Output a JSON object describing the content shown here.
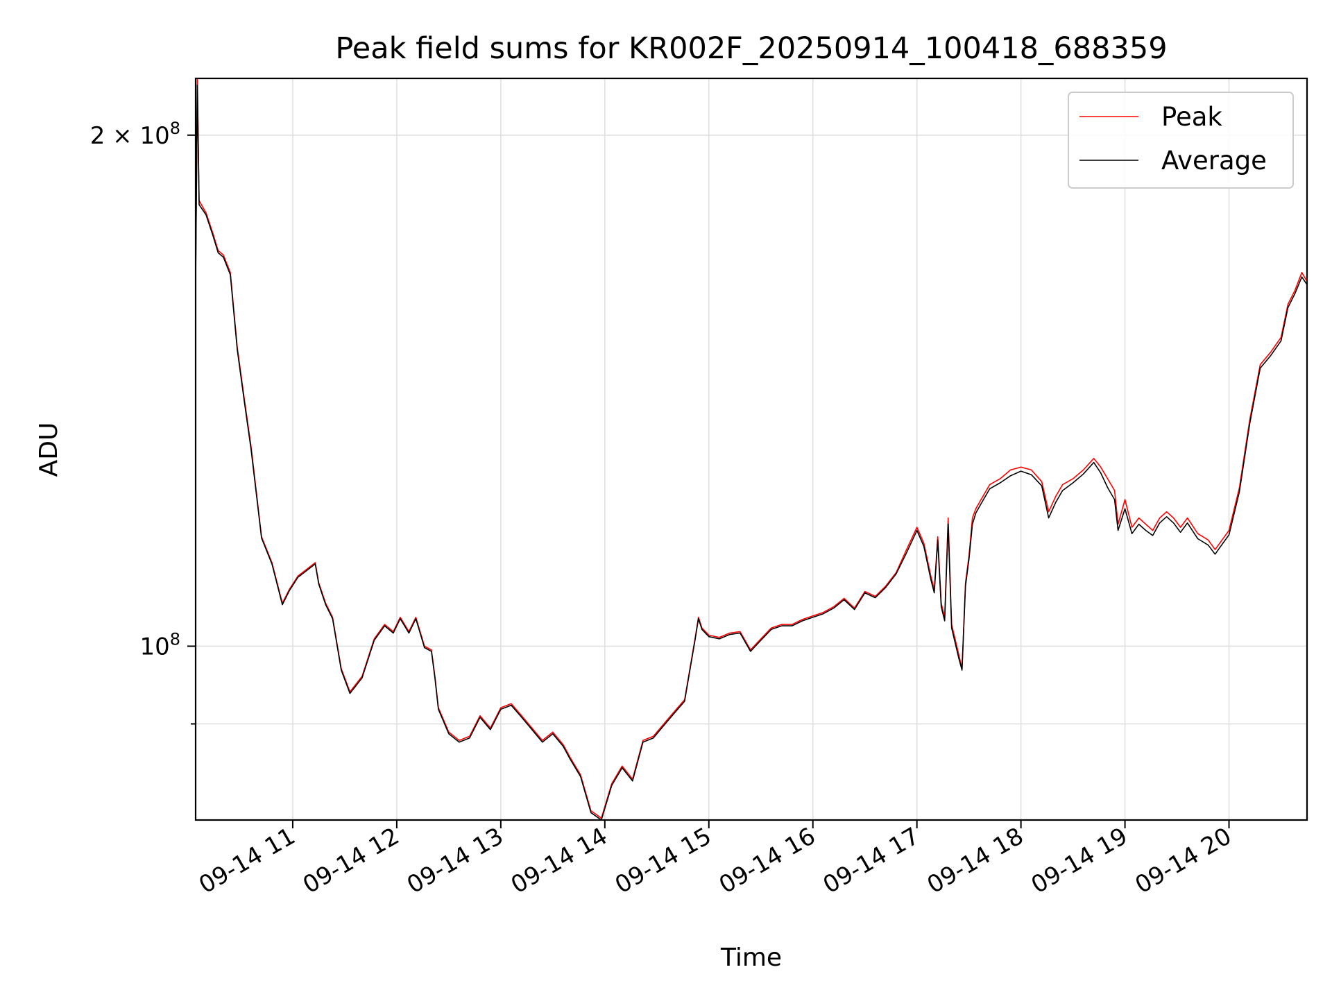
{
  "chart_data": {
    "type": "line",
    "title": "Peak field sums for KR002F_20250914_100418_688359",
    "xlabel": "Time",
    "ylabel": "ADU",
    "yscale": "log",
    "ylim": [
      79000000,
      216000000
    ],
    "xlim": [
      "2025-09-14 10:04",
      "2025-09-14 20:45"
    ],
    "grid": true,
    "legend_position": "top-right",
    "x_ticks": [
      {
        "value": "2025-09-14 11:00",
        "label": "09-14 11"
      },
      {
        "value": "2025-09-14 12:00",
        "label": "09-14 12"
      },
      {
        "value": "2025-09-14 13:00",
        "label": "09-14 13"
      },
      {
        "value": "2025-09-14 14:00",
        "label": "09-14 14"
      },
      {
        "value": "2025-09-14 15:00",
        "label": "09-14 15"
      },
      {
        "value": "2025-09-14 16:00",
        "label": "09-14 16"
      },
      {
        "value": "2025-09-14 17:00",
        "label": "09-14 17"
      },
      {
        "value": "2025-09-14 18:00",
        "label": "09-14 18"
      },
      {
        "value": "2025-09-14 19:00",
        "label": "09-14 19"
      },
      {
        "value": "2025-09-14 20:00",
        "label": "09-14 20"
      }
    ],
    "y_major_ticks": [
      {
        "value": 100000000,
        "label": "10",
        "exp": "8",
        "prefix": ""
      },
      {
        "value": 200000000,
        "label": "10",
        "exp": "8",
        "prefix": "2 × "
      }
    ],
    "y_minor_ticks": [
      90000000
    ],
    "series": [
      {
        "name": "Peak",
        "color": "#ff0000",
        "x": [
          "2025-09-14 10:04",
          "2025-09-14 10:05",
          "2025-09-14 10:06",
          "2025-09-14 10:10",
          "2025-09-14 10:14",
          "2025-09-14 10:17",
          "2025-09-14 10:20",
          "2025-09-14 10:24",
          "2025-09-14 10:28",
          "2025-09-14 10:32",
          "2025-09-14 10:36",
          "2025-09-14 10:42",
          "2025-09-14 10:48",
          "2025-09-14 10:54",
          "2025-09-14 10:58",
          "2025-09-14 11:03",
          "2025-09-14 11:08",
          "2025-09-14 11:13",
          "2025-09-14 11:15",
          "2025-09-14 11:19",
          "2025-09-14 11:23",
          "2025-09-14 11:28",
          "2025-09-14 11:33",
          "2025-09-14 11:40",
          "2025-09-14 11:47",
          "2025-09-14 11:53",
          "2025-09-14 11:58",
          "2025-09-14 12:02",
          "2025-09-14 12:07",
          "2025-09-14 12:11",
          "2025-09-14 12:16",
          "2025-09-14 12:20",
          "2025-09-14 12:22",
          "2025-09-14 12:24",
          "2025-09-14 12:30",
          "2025-09-14 12:36",
          "2025-09-14 12:42",
          "2025-09-14 12:48",
          "2025-09-14 12:54",
          "2025-09-14 13:00",
          "2025-09-14 13:06",
          "2025-09-14 13:12",
          "2025-09-14 13:18",
          "2025-09-14 13:24",
          "2025-09-14 13:30",
          "2025-09-14 13:36",
          "2025-09-14 13:40",
          "2025-09-14 13:46",
          "2025-09-14 13:52",
          "2025-09-14 13:58",
          "2025-09-14 14:04",
          "2025-09-14 14:10",
          "2025-09-14 14:16",
          "2025-09-14 14:22",
          "2025-09-14 14:28",
          "2025-09-14 14:34",
          "2025-09-14 14:40",
          "2025-09-14 14:46",
          "2025-09-14 14:52",
          "2025-09-14 14:54",
          "2025-09-14 14:56",
          "2025-09-14 15:00",
          "2025-09-14 15:06",
          "2025-09-14 15:12",
          "2025-09-14 15:18",
          "2025-09-14 15:24",
          "2025-09-14 15:30",
          "2025-09-14 15:36",
          "2025-09-14 15:42",
          "2025-09-14 15:48",
          "2025-09-14 15:54",
          "2025-09-14 16:00",
          "2025-09-14 16:06",
          "2025-09-14 16:12",
          "2025-09-14 16:18",
          "2025-09-14 16:24",
          "2025-09-14 16:30",
          "2025-09-14 16:36",
          "2025-09-14 16:42",
          "2025-09-14 16:48",
          "2025-09-14 16:54",
          "2025-09-14 17:00",
          "2025-09-14 17:04",
          "2025-09-14 17:08",
          "2025-09-14 17:10",
          "2025-09-14 17:12",
          "2025-09-14 17:14",
          "2025-09-14 17:16",
          "2025-09-14 17:18",
          "2025-09-14 17:20",
          "2025-09-14 17:22",
          "2025-09-14 17:24",
          "2025-09-14 17:26",
          "2025-09-14 17:28",
          "2025-09-14 17:30",
          "2025-09-14 17:32",
          "2025-09-14 17:34",
          "2025-09-14 17:36",
          "2025-09-14 17:38",
          "2025-09-14 17:42",
          "2025-09-14 17:48",
          "2025-09-14 17:54",
          "2025-09-14 18:00",
          "2025-09-14 18:06",
          "2025-09-14 18:12",
          "2025-09-14 18:16",
          "2025-09-14 18:20",
          "2025-09-14 18:24",
          "2025-09-14 18:30",
          "2025-09-14 18:36",
          "2025-09-14 18:42",
          "2025-09-14 18:46",
          "2025-09-14 18:50",
          "2025-09-14 18:54",
          "2025-09-14 18:56",
          "2025-09-14 19:00",
          "2025-09-14 19:04",
          "2025-09-14 19:08",
          "2025-09-14 19:12",
          "2025-09-14 19:16",
          "2025-09-14 19:20",
          "2025-09-14 19:24",
          "2025-09-14 19:28",
          "2025-09-14 19:32",
          "2025-09-14 19:36",
          "2025-09-14 19:42",
          "2025-09-14 19:48",
          "2025-09-14 19:52",
          "2025-09-14 19:56",
          "2025-09-14 20:00",
          "2025-09-14 20:06",
          "2025-09-14 20:12",
          "2025-09-14 20:18",
          "2025-09-14 20:24",
          "2025-09-14 20:30",
          "2025-09-14 20:34",
          "2025-09-14 20:38",
          "2025-09-14 20:42",
          "2025-09-14 20:45"
        ],
        "values": [
          165000000,
          216000000,
          183000000,
          180000000,
          175000000,
          171000000,
          170000000,
          166000000,
          150000000,
          140000000,
          131000000,
          116000000,
          112000000,
          106000000,
          108000000,
          110000000,
          111000000,
          112000000,
          109000000,
          106000000,
          104000000,
          97000000,
          94000000,
          96000000,
          101000000,
          103000000,
          102000000,
          104000000,
          102000000,
          104000000,
          100000000,
          99500000,
          96000000,
          92000000,
          89000000,
          88000000,
          88500000,
          91000000,
          89500000,
          92000000,
          92500000,
          91000000,
          89500000,
          88000000,
          89000000,
          87500000,
          86000000,
          84000000,
          80000000,
          79200000,
          83000000,
          85000000,
          83500000,
          88000000,
          88500000,
          90000000,
          91500000,
          93000000,
          101000000,
          104000000,
          102500000,
          101500000,
          101200000,
          101800000,
          102000000,
          99500000,
          101000000,
          102500000,
          103000000,
          103000000,
          103700000,
          104200000,
          104700000,
          105500000,
          106700000,
          105300000,
          107700000,
          107000000,
          108500000,
          110500000,
          114000000,
          117500000,
          115000000,
          110000000,
          108000000,
          116000000,
          106000000,
          104000000,
          119000000,
          103000000,
          101000000,
          99000000,
          97000000,
          109000000,
          113000000,
          119000000,
          120500000,
          121500000,
          122500000,
          124500000,
          125500000,
          127000000,
          127500000,
          127000000,
          125000000,
          120000000,
          122500000,
          124500000,
          125500000,
          127000000,
          129000000,
          127500000,
          125500000,
          123500000,
          118000000,
          122000000,
          117500000,
          119000000,
          118000000,
          117000000,
          119000000,
          120000000,
          119000000,
          117500000,
          119000000,
          116500000,
          115500000,
          114000000,
          115500000,
          117000000,
          124000000,
          136000000,
          146500000,
          149000000,
          152000000,
          159000000,
          162000000,
          166000000,
          164000000
        ]
      },
      {
        "name": "Average",
        "color": "#000000",
        "x": [
          "2025-09-14 10:04",
          "2025-09-14 10:05",
          "2025-09-14 10:06",
          "2025-09-14 10:10",
          "2025-09-14 10:14",
          "2025-09-14 10:17",
          "2025-09-14 10:20",
          "2025-09-14 10:24",
          "2025-09-14 10:28",
          "2025-09-14 10:32",
          "2025-09-14 10:36",
          "2025-09-14 10:42",
          "2025-09-14 10:48",
          "2025-09-14 10:54",
          "2025-09-14 10:58",
          "2025-09-14 11:03",
          "2025-09-14 11:08",
          "2025-09-14 11:13",
          "2025-09-14 11:15",
          "2025-09-14 11:19",
          "2025-09-14 11:23",
          "2025-09-14 11:28",
          "2025-09-14 11:33",
          "2025-09-14 11:40",
          "2025-09-14 11:47",
          "2025-09-14 11:53",
          "2025-09-14 11:58",
          "2025-09-14 12:02",
          "2025-09-14 12:07",
          "2025-09-14 12:11",
          "2025-09-14 12:16",
          "2025-09-14 12:20",
          "2025-09-14 12:22",
          "2025-09-14 12:24",
          "2025-09-14 12:30",
          "2025-09-14 12:36",
          "2025-09-14 12:42",
          "2025-09-14 12:48",
          "2025-09-14 12:54",
          "2025-09-14 13:00",
          "2025-09-14 13:06",
          "2025-09-14 13:12",
          "2025-09-14 13:18",
          "2025-09-14 13:24",
          "2025-09-14 13:30",
          "2025-09-14 13:36",
          "2025-09-14 13:40",
          "2025-09-14 13:46",
          "2025-09-14 13:52",
          "2025-09-14 13:58",
          "2025-09-14 14:04",
          "2025-09-14 14:10",
          "2025-09-14 14:16",
          "2025-09-14 14:22",
          "2025-09-14 14:28",
          "2025-09-14 14:34",
          "2025-09-14 14:40",
          "2025-09-14 14:46",
          "2025-09-14 14:52",
          "2025-09-14 14:54",
          "2025-09-14 14:56",
          "2025-09-14 15:00",
          "2025-09-14 15:06",
          "2025-09-14 15:12",
          "2025-09-14 15:18",
          "2025-09-14 15:24",
          "2025-09-14 15:30",
          "2025-09-14 15:36",
          "2025-09-14 15:42",
          "2025-09-14 15:48",
          "2025-09-14 15:54",
          "2025-09-14 16:00",
          "2025-09-14 16:06",
          "2025-09-14 16:12",
          "2025-09-14 16:18",
          "2025-09-14 16:24",
          "2025-09-14 16:30",
          "2025-09-14 16:36",
          "2025-09-14 16:42",
          "2025-09-14 16:48",
          "2025-09-14 16:54",
          "2025-09-14 17:00",
          "2025-09-14 17:04",
          "2025-09-14 17:08",
          "2025-09-14 17:10",
          "2025-09-14 17:12",
          "2025-09-14 17:14",
          "2025-09-14 17:16",
          "2025-09-14 17:18",
          "2025-09-14 17:20",
          "2025-09-14 17:22",
          "2025-09-14 17:24",
          "2025-09-14 17:26",
          "2025-09-14 17:28",
          "2025-09-14 17:30",
          "2025-09-14 17:32",
          "2025-09-14 17:34",
          "2025-09-14 17:36",
          "2025-09-14 17:38",
          "2025-09-14 17:42",
          "2025-09-14 17:48",
          "2025-09-14 17:54",
          "2025-09-14 18:00",
          "2025-09-14 18:06",
          "2025-09-14 18:12",
          "2025-09-14 18:16",
          "2025-09-14 18:20",
          "2025-09-14 18:24",
          "2025-09-14 18:30",
          "2025-09-14 18:36",
          "2025-09-14 18:42",
          "2025-09-14 18:46",
          "2025-09-14 18:50",
          "2025-09-14 18:54",
          "2025-09-14 18:56",
          "2025-09-14 19:00",
          "2025-09-14 19:04",
          "2025-09-14 19:08",
          "2025-09-14 19:12",
          "2025-09-14 19:16",
          "2025-09-14 19:20",
          "2025-09-14 19:24",
          "2025-09-14 19:28",
          "2025-09-14 19:32",
          "2025-09-14 19:36",
          "2025-09-14 19:42",
          "2025-09-14 19:48",
          "2025-09-14 19:52",
          "2025-09-14 19:56",
          "2025-09-14 20:00",
          "2025-09-14 20:06",
          "2025-09-14 20:12",
          "2025-09-14 20:18",
          "2025-09-14 20:24",
          "2025-09-14 20:30",
          "2025-09-14 20:34",
          "2025-09-14 20:38",
          "2025-09-14 20:42",
          "2025-09-14 20:45"
        ],
        "values": [
          164000000,
          214000000,
          182000000,
          179500000,
          174500000,
          170500000,
          169500000,
          165500000,
          149500000,
          139500000,
          130500000,
          115800000,
          111800000,
          105800000,
          107800000,
          109800000,
          110800000,
          111800000,
          108800000,
          105800000,
          103800000,
          96800000,
          93800000,
          95800000,
          100800000,
          102800000,
          101800000,
          103800000,
          101800000,
          103800000,
          99800000,
          99300000,
          95800000,
          91800000,
          88800000,
          87800000,
          88300000,
          90800000,
          89300000,
          91800000,
          92300000,
          90800000,
          89300000,
          87800000,
          88800000,
          87300000,
          85800000,
          83800000,
          79800000,
          79000000,
          82800000,
          84800000,
          83300000,
          87800000,
          88300000,
          89800000,
          91300000,
          92800000,
          100800000,
          103800000,
          102300000,
          101300000,
          101000000,
          101600000,
          101800000,
          99300000,
          100800000,
          102300000,
          102800000,
          102800000,
          103500000,
          104000000,
          104500000,
          105300000,
          106500000,
          105100000,
          107500000,
          106800000,
          108300000,
          110300000,
          113500000,
          117000000,
          114500000,
          109500000,
          107500000,
          115500000,
          105500000,
          103500000,
          118000000,
          102500000,
          100500000,
          98500000,
          96800000,
          108500000,
          112500000,
          118000000,
          119800000,
          120800000,
          121800000,
          123800000,
          124800000,
          126000000,
          126800000,
          126200000,
          124300000,
          119000000,
          121500000,
          123500000,
          124800000,
          126300000,
          128300000,
          126500000,
          124000000,
          122000000,
          117000000,
          120500000,
          116500000,
          118000000,
          117000000,
          116200000,
          118200000,
          119200000,
          118200000,
          116700000,
          118200000,
          115700000,
          114700000,
          113300000,
          114800000,
          116300000,
          123300000,
          135300000,
          145800000,
          148300000,
          151300000,
          158300000,
          161300000,
          165000000,
          163300000
        ]
      }
    ]
  }
}
